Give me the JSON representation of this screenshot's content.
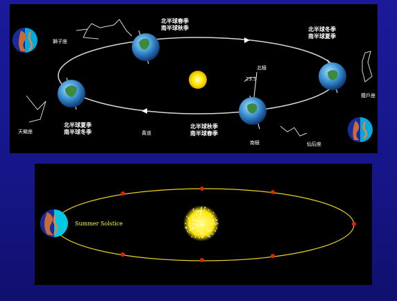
{
  "top": {
    "season_labels": {
      "top_north": "北半球春季",
      "top_south": "南半球秋季",
      "right_north": "北半球冬季",
      "right_south": "南半球夏季",
      "left_north": "北半球夏季",
      "left_south": "南半球冬季",
      "bottom_north": "北半球秋季",
      "bottom_south": "南半球春季"
    },
    "constellations": {
      "top": "獅子座",
      "right": "獵戶座",
      "left": "天蠍座",
      "bottom": "仙后座"
    },
    "orbit_label": "黃道",
    "north_pole": "北極",
    "south_pole": "南極",
    "tilt": "23.5"
  },
  "bottom": {
    "caption": "Summer Solstice"
  },
  "colors": {
    "orbit_yellow": "#e8d020",
    "marker_red": "#e02010",
    "sun_yellow": "#ffe600"
  }
}
